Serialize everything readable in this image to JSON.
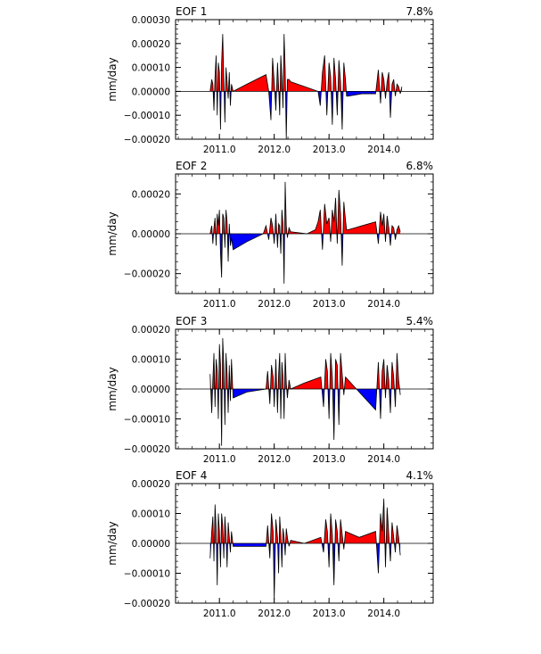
{
  "colors": {
    "positive": "#ff0000",
    "negative": "#0000ff",
    "line": "#000000"
  },
  "chart_data": [
    {
      "type": "area",
      "title": "EOF 1",
      "variance_label": "7.8%",
      "ylabel": "mm/day",
      "ylim": [
        -0.0002,
        0.0003
      ],
      "yticks": [
        -0.0002,
        -0.0001,
        0.0,
        0.0001,
        0.0002,
        0.0003
      ],
      "ytick_labels": [
        "−0.00020",
        "−0.00010",
        "0.00000",
        "0.00010",
        "0.00020",
        "0.00030"
      ],
      "xlim": [
        2010.2,
        2014.9
      ],
      "xticks": [
        2011.0,
        2012.0,
        2013.0,
        2014.0
      ],
      "xtick_labels": [
        "2011.0",
        "2012.0",
        "2013.0",
        "2014.0"
      ],
      "x": [
        2010.83,
        2010.86,
        2010.88,
        2010.9,
        2010.92,
        2010.94,
        2010.96,
        2010.98,
        2011.0,
        2011.02,
        2011.04,
        2011.06,
        2011.08,
        2011.1,
        2011.12,
        2011.14,
        2011.16,
        2011.18,
        2011.2,
        2011.22,
        2011.25,
        2011.5,
        2011.85,
        2011.9,
        2011.94,
        2011.97,
        2012.0,
        2012.03,
        2012.06,
        2012.08,
        2012.1,
        2012.12,
        2012.14,
        2012.16,
        2012.18,
        2012.2,
        2012.22,
        2012.24,
        2012.27,
        2012.3,
        2012.55,
        2012.8,
        2012.84,
        2012.88,
        2012.92,
        2012.96,
        2013.0,
        2013.03,
        2013.06,
        2013.09,
        2013.12,
        2013.15,
        2013.18,
        2013.21,
        2013.24,
        2013.27,
        2013.3,
        2013.32,
        2013.35,
        2013.6,
        2013.85,
        2013.9,
        2013.94,
        2013.97,
        2014.0,
        2014.03,
        2014.06,
        2014.09,
        2014.12,
        2014.15,
        2014.18,
        2014.21,
        2014.24,
        2014.27,
        2014.3,
        2014.33
      ],
      "values": [
        0.0,
        5e-05,
        3e-05,
        -8e-05,
        6e-05,
        0.00015,
        -0.0001,
        0.00012,
        8e-05,
        -0.00016,
        0.00012,
        0.00024,
        5e-05,
        -0.00013,
        0.0001,
        4e-05,
        -3e-05,
        8e-05,
        -6e-05,
        3e-05,
        0.0,
        3e-05,
        7e-05,
        0.0,
        -0.00012,
        0.00014,
        4e-05,
        -8e-05,
        0.00012,
        2e-05,
        -0.0001,
        0.00015,
        6e-05,
        -7e-05,
        0.00024,
        9e-05,
        -0.0002,
        5e-05,
        5e-05,
        4e-05,
        2e-05,
        0.0,
        -6e-05,
        8e-05,
        0.00015,
        -0.0001,
        0.00012,
        6e-05,
        -0.00014,
        0.00014,
        5e-05,
        -0.0001,
        0.00013,
        4e-05,
        -0.00016,
        0.00012,
        5e-05,
        -2e-05,
        -2e-05,
        -1e-05,
        -1e-05,
        9e-05,
        -5e-05,
        8e-05,
        5e-05,
        -3e-05,
        4e-05,
        8e-05,
        -0.00011,
        3e-05,
        5e-05,
        -2e-05,
        3e-05,
        2e-05,
        -1e-05,
        2e-05
      ]
    },
    {
      "type": "area",
      "title": "EOF 2",
      "variance_label": "6.8%",
      "ylabel": "mm/day",
      "ylim": [
        -0.0003,
        0.0003
      ],
      "yticks": [
        -0.0002,
        0.0,
        0.0002
      ],
      "ytick_labels": [
        "−0.00020",
        "0.00000",
        "0.00020"
      ],
      "xlim": [
        2010.2,
        2014.9
      ],
      "xticks": [
        2011.0,
        2012.0,
        2013.0,
        2014.0
      ],
      "xtick_labels": [
        "2011.0",
        "2012.0",
        "2013.0",
        "2014.0"
      ],
      "x": [
        2010.83,
        2010.86,
        2010.88,
        2010.9,
        2010.92,
        2010.94,
        2010.96,
        2010.98,
        2011.0,
        2011.02,
        2011.04,
        2011.06,
        2011.08,
        2011.1,
        2011.12,
        2011.14,
        2011.16,
        2011.18,
        2011.2,
        2011.22,
        2011.25,
        2011.5,
        2011.8,
        2011.85,
        2011.9,
        2011.94,
        2011.97,
        2012.0,
        2012.03,
        2012.06,
        2012.08,
        2012.1,
        2012.12,
        2012.14,
        2012.16,
        2012.18,
        2012.2,
        2012.22,
        2012.24,
        2012.27,
        2012.3,
        2012.6,
        2012.75,
        2012.8,
        2012.84,
        2012.88,
        2012.92,
        2012.96,
        2013.0,
        2013.03,
        2013.06,
        2013.09,
        2013.12,
        2013.15,
        2013.18,
        2013.21,
        2013.24,
        2013.27,
        2013.3,
        2013.32,
        2013.35,
        2013.6,
        2013.85,
        2013.9,
        2013.94,
        2013.97,
        2014.0,
        2014.03,
        2014.06,
        2014.09,
        2014.12,
        2014.15,
        2014.18,
        2014.21,
        2014.24,
        2014.27,
        2014.3
      ],
      "values": [
        0.0,
        4e-05,
        -5e-05,
        3e-05,
        8e-05,
        -6e-05,
        0.0001,
        4e-05,
        0.00012,
        -0.0001,
        -0.00022,
        0.0001,
        8e-05,
        -7e-05,
        0.00012,
        6e-05,
        -0.00014,
        5e-05,
        -6e-05,
        -2e-05,
        -8e-05,
        -4e-05,
        0.0,
        4e-05,
        -3e-05,
        8e-05,
        4e-05,
        -5e-05,
        0.0001,
        -7e-05,
        5e-05,
        4e-05,
        -0.0001,
        0.00012,
        5e-05,
        -0.00025,
        0.00026,
        4e-05,
        -2e-05,
        3e-05,
        1e-05,
        0.0,
        2e-05,
        6e-05,
        0.00012,
        -8e-05,
        0.00015,
        5e-05,
        8e-05,
        -4e-05,
        0.00012,
        6e-05,
        0.00018,
        -5e-05,
        0.00022,
        0.0001,
        -0.00016,
        0.00016,
        7e-05,
        2e-05,
        2e-05,
        4e-05,
        6e-05,
        -5e-05,
        0.00011,
        4e-05,
        0.0001,
        -4e-05,
        9e-05,
        3e-05,
        -6e-05,
        4e-05,
        3e-05,
        -3e-05,
        2e-05,
        4e-05,
        1e-05
      ]
    },
    {
      "type": "area",
      "title": "EOF 3",
      "variance_label": "5.4%",
      "ylabel": "mm/day",
      "ylim": [
        -0.0002,
        0.0002
      ],
      "yticks": [
        -0.0002,
        -0.0001,
        0.0,
        0.0001,
        0.0002
      ],
      "ytick_labels": [
        "−0.00020",
        "−0.00010",
        "0.00000",
        "0.00010",
        "0.00020"
      ],
      "xlim": [
        2010.2,
        2014.9
      ],
      "xticks": [
        2011.0,
        2012.0,
        2013.0,
        2014.0
      ],
      "xtick_labels": [
        "2011.0",
        "2012.0",
        "2013.0",
        "2014.0"
      ],
      "x": [
        2010.83,
        2010.86,
        2010.88,
        2010.9,
        2010.92,
        2010.94,
        2010.96,
        2010.98,
        2011.0,
        2011.02,
        2011.04,
        2011.06,
        2011.08,
        2011.1,
        2011.12,
        2011.14,
        2011.16,
        2011.18,
        2011.2,
        2011.22,
        2011.25,
        2011.5,
        2011.85,
        2011.88,
        2011.92,
        2011.95,
        2011.98,
        2012.0,
        2012.03,
        2012.06,
        2012.08,
        2012.1,
        2012.12,
        2012.14,
        2012.16,
        2012.18,
        2012.2,
        2012.22,
        2012.24,
        2012.27,
        2012.3,
        2012.55,
        2012.85,
        2012.9,
        2012.94,
        2012.97,
        2013.0,
        2013.03,
        2013.06,
        2013.09,
        2013.12,
        2013.15,
        2013.18,
        2013.21,
        2013.24,
        2013.27,
        2013.3,
        2013.55,
        2013.85,
        2013.9,
        2013.94,
        2013.97,
        2014.0,
        2014.03,
        2014.06,
        2014.09,
        2014.12,
        2014.15,
        2014.18,
        2014.21,
        2014.24,
        2014.27,
        2014.3
      ],
      "values": [
        5e-05,
        -8e-05,
        3e-05,
        0.00012,
        -6e-05,
        0.0001,
        6e-05,
        -0.0001,
        0.00015,
        8e-05,
        -0.00019,
        0.00017,
        8e-05,
        -0.00012,
        0.00012,
        5e-05,
        -8e-05,
        8e-05,
        -4e-05,
        0.0001,
        -3e-05,
        -1e-05,
        0.0,
        6e-05,
        -5e-05,
        8e-05,
        4e-05,
        -6e-05,
        0.0001,
        -8e-05,
        5e-05,
        0.00012,
        -0.0001,
        9e-05,
        4e-05,
        -0.0001,
        0.00012,
        2e-05,
        -3e-05,
        3e-05,
        0.0,
        2e-05,
        4e-05,
        -6e-05,
        0.0001,
        6e-05,
        -0.0001,
        0.00012,
        4e-05,
        -0.00017,
        0.0001,
        8e-05,
        -0.00012,
        0.00012,
        5e-05,
        -2e-05,
        4e-05,
        -1e-05,
        -7e-05,
        9e-05,
        -0.0001,
        6e-05,
        0.0001,
        -3e-05,
        8e-05,
        3e-05,
        -8e-05,
        9e-05,
        4e-05,
        -6e-05,
        0.00012,
        3e-05,
        -2e-05
      ]
    },
    {
      "type": "area",
      "title": "EOF 4",
      "variance_label": "4.1%",
      "ylabel": "mm/day",
      "ylim": [
        -0.0002,
        0.0002
      ],
      "yticks": [
        -0.0002,
        -0.0001,
        0.0,
        0.0001,
        0.0002
      ],
      "ytick_labels": [
        "−0.00020",
        "−0.00010",
        "0.00000",
        "0.00010",
        "0.00020"
      ],
      "xlim": [
        2010.2,
        2014.9
      ],
      "xticks": [
        2011.0,
        2012.0,
        2013.0,
        2014.0
      ],
      "xtick_labels": [
        "2011.0",
        "2012.0",
        "2013.0",
        "2014.0"
      ],
      "x": [
        2010.83,
        2010.86,
        2010.88,
        2010.9,
        2010.92,
        2010.94,
        2010.96,
        2010.98,
        2011.0,
        2011.02,
        2011.04,
        2011.06,
        2011.08,
        2011.1,
        2011.12,
        2011.14,
        2011.16,
        2011.18,
        2011.2,
        2011.22,
        2011.25,
        2011.5,
        2011.85,
        2011.88,
        2011.92,
        2011.95,
        2011.98,
        2012.0,
        2012.03,
        2012.06,
        2012.08,
        2012.1,
        2012.12,
        2012.14,
        2012.16,
        2012.18,
        2012.2,
        2012.22,
        2012.24,
        2012.27,
        2012.3,
        2012.55,
        2012.85,
        2012.9,
        2012.94,
        2012.97,
        2013.0,
        2013.03,
        2013.06,
        2013.09,
        2013.12,
        2013.15,
        2013.18,
        2013.21,
        2013.24,
        2013.27,
        2013.3,
        2013.55,
        2013.85,
        2013.9,
        2013.94,
        2013.97,
        2014.0,
        2014.03,
        2014.06,
        2014.09,
        2014.12,
        2014.15,
        2014.18,
        2014.21,
        2014.24,
        2014.27,
        2014.3
      ],
      "values": [
        -5e-05,
        4e-05,
        9e-05,
        -6e-05,
        0.00013,
        5e-05,
        -0.00014,
        0.0001,
        4e-05,
        -8e-05,
        0.0001,
        6e-05,
        -5e-05,
        9e-05,
        3e-05,
        -8e-05,
        7e-05,
        2e-05,
        -3e-05,
        4e-05,
        -1e-05,
        -1e-05,
        -1e-05,
        6e-05,
        -5e-05,
        0.0001,
        4e-05,
        -0.00019,
        8e-05,
        2e-05,
        -0.0001,
        9e-05,
        3e-05,
        -8e-05,
        5e-05,
        2e-05,
        -4e-05,
        5e-05,
        2e-05,
        -1e-05,
        1e-05,
        0.0,
        2e-05,
        -3e-05,
        8e-05,
        4e-05,
        -8e-05,
        0.0001,
        3e-05,
        -0.00014,
        8e-05,
        4e-05,
        -6e-05,
        8e-05,
        3e-05,
        -2e-05,
        4e-05,
        2e-05,
        4e-05,
        -0.0001,
        0.0001,
        4e-05,
        0.00015,
        -8e-05,
        0.00012,
        3e-05,
        -6e-05,
        7e-05,
        2e-05,
        -3e-05,
        6e-05,
        2e-05,
        -4e-05
      ]
    }
  ]
}
